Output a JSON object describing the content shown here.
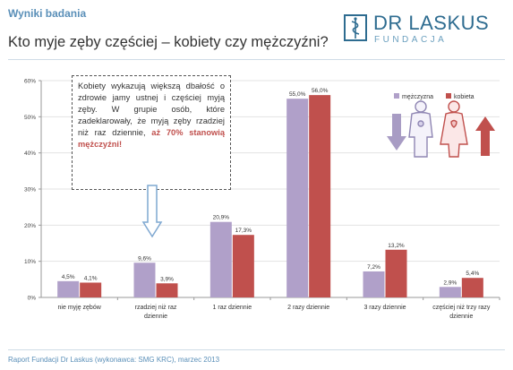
{
  "header": {
    "section_label": "Wyniki badania",
    "title": "Kto myje zęby częściej – kobiety czy mężczyźni?",
    "logo_name": "DR LASKUS",
    "logo_sub": "FUNDACJA"
  },
  "colors": {
    "men": "#b0a0c9",
    "women": "#c0504d",
    "arrow_down": "#a89cc4",
    "arrow_up": "#c0504d",
    "callout_arrow": "#7fa8d1",
    "accent": "#2e6c90"
  },
  "callout": {
    "text_before": "Kobiety wykazują większą dbałość o zdrowie jamy ustnej i częściej myją zęby. W grupie osób, które zadeklarowały, że myją zęby rzadziej niż raz dziennie,",
    "highlight": "aż 70% stanowią mężczyźni!"
  },
  "icons": {
    "down_arrow": "arrow-down-icon",
    "up_arrow": "arrow-up-icon",
    "man": "man-icon",
    "woman": "woman-icon"
  },
  "chart_data": {
    "type": "bar",
    "categories": [
      [
        "nie myję zębów"
      ],
      [
        "rzadziej niż raz",
        "dziennie"
      ],
      [
        "1 raz dziennie"
      ],
      [
        "2 razy dziennie"
      ],
      [
        "3 razy dziennie"
      ],
      [
        "częściej niż trzy razy",
        "dziennie"
      ]
    ],
    "series": [
      {
        "name": "mężczyzna",
        "color": "#b0a0c9",
        "values": [
          4.5,
          9.6,
          20.9,
          55.0,
          7.2,
          2.9
        ],
        "labels": [
          "4,5%",
          "9,6%",
          "20,9%",
          "55,0%",
          "7,2%",
          "2,9%"
        ]
      },
      {
        "name": "kobieta",
        "color": "#c0504d",
        "values": [
          4.1,
          3.9,
          17.3,
          56.0,
          13.2,
          5.4
        ],
        "labels": [
          "4,1%",
          "3,9%",
          "17,3%",
          "56,0%",
          "13,2%",
          "5,4%"
        ]
      }
    ],
    "ylim": [
      0,
      60
    ],
    "yticks": [
      "0%",
      "10%",
      "20%",
      "30%",
      "40%",
      "50%",
      "60%"
    ],
    "legend_position": "top-right"
  },
  "footer": {
    "text": "Raport Fundacji Dr Laskus (wykonawca: SMG KRC), marzec 2013"
  }
}
